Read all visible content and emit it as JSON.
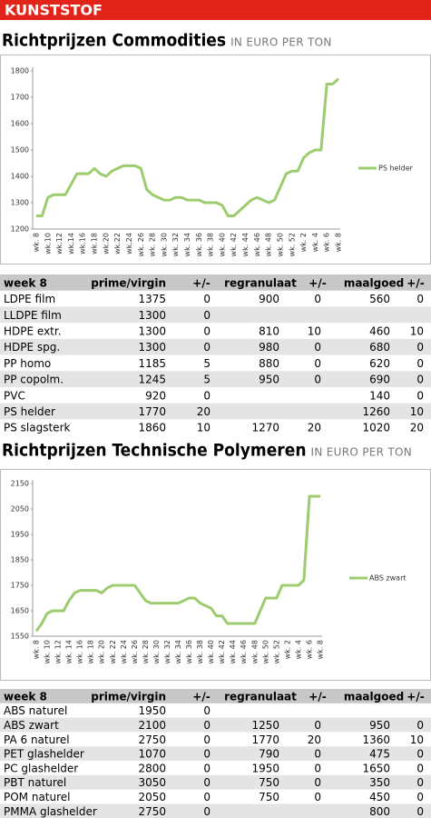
{
  "header": "KUNSTSTOF",
  "sections": [
    {
      "title": "Richtprijzen Commodities",
      "subtitle": "IN EURO PER TON",
      "table": {
        "columns": [
          "week 8",
          "prime/virgin",
          "+/-",
          "regranulaat",
          "+/-",
          "maalgoed",
          "+/-"
        ],
        "rows": [
          [
            "LDPE film",
            1375,
            0,
            900,
            0,
            560,
            0
          ],
          [
            "LLDPE film",
            1300,
            0,
            null,
            null,
            null,
            null
          ],
          [
            "HDPE extr.",
            1300,
            0,
            810,
            10,
            460,
            10
          ],
          [
            "HDPE spg.",
            1300,
            0,
            980,
            0,
            680,
            0
          ],
          [
            "PP homo",
            1185,
            5,
            880,
            0,
            620,
            0
          ],
          [
            "PP copolm.",
            1245,
            5,
            950,
            0,
            690,
            0
          ],
          [
            "PVC",
            920,
            0,
            null,
            null,
            140,
            0
          ],
          [
            "PS helder",
            1770,
            20,
            null,
            null,
            1260,
            10
          ],
          [
            "PS slagsterk",
            1860,
            10,
            1270,
            20,
            1020,
            20
          ]
        ]
      }
    },
    {
      "title": "Richtprijzen Technische Polymeren",
      "subtitle": "IN EURO PER TON",
      "table": {
        "columns": [
          "week 8",
          "prime/virgin",
          "+/-",
          "regranulaat",
          "+/-",
          "maalgoed",
          "+/-"
        ],
        "rows": [
          [
            "ABS naturel",
            1950,
            0,
            null,
            null,
            null,
            null
          ],
          [
            "ABS zwart",
            2100,
            0,
            1250,
            0,
            950,
            0
          ],
          [
            "PA 6 naturel",
            2750,
            0,
            1770,
            20,
            1360,
            10
          ],
          [
            "PET glashelder",
            1070,
            0,
            790,
            0,
            475,
            0
          ],
          [
            "PC glashelder",
            2800,
            0,
            1950,
            0,
            1650,
            0
          ],
          [
            "PBT naturel",
            3050,
            0,
            750,
            0,
            350,
            0
          ],
          [
            "POM naturel",
            2050,
            0,
            750,
            0,
            450,
            0
          ],
          [
            "PMMA glashelder",
            2750,
            0,
            null,
            null,
            800,
            0
          ]
        ]
      }
    }
  ],
  "chart_data": [
    {
      "type": "line",
      "categories": [
        "wk. 8",
        null,
        "wk.10",
        null,
        "wk.12",
        null,
        "wk.14",
        null,
        "wk.16",
        null,
        "wk.18",
        null,
        "wk.20",
        null,
        "wk.22",
        null,
        "wk.24",
        null,
        "wk. 26",
        null,
        "wk. 28",
        null,
        "wk. 30",
        null,
        "wk. 32",
        null,
        "wk. 34",
        null,
        "wk. 36",
        null,
        "wk. 38",
        null,
        "wk. 40",
        null,
        "wk. 42",
        null,
        "wk. 44",
        null,
        "wk. 46",
        null,
        "wk. 48",
        null,
        "wk. 50",
        null,
        "wk. 52",
        null,
        "wk. 2",
        null,
        "wk. 4",
        null,
        "wk. 6",
        null,
        "wk. 8"
      ],
      "series": [
        {
          "name": "PS helder",
          "color": "#9ccc6e",
          "values": [
            1250,
            1250,
            1320,
            1330,
            1330,
            1330,
            1370,
            1410,
            1410,
            1410,
            1430,
            1410,
            1400,
            1420,
            1430,
            1440,
            1440,
            1440,
            1430,
            1350,
            1330,
            1320,
            1310,
            1310,
            1320,
            1320,
            1310,
            1310,
            1310,
            1300,
            1300,
            1300,
            1290,
            1250,
            1250,
            1270,
            1290,
            1310,
            1320,
            1310,
            1300,
            1310,
            1360,
            1410,
            1420,
            1420,
            1470,
            1490,
            1500,
            1500,
            1750,
            1750,
            1770
          ]
        }
      ],
      "ylim": [
        1200,
        1800
      ],
      "yticks": [
        1200,
        1300,
        1400,
        1500,
        1600,
        1700,
        1800
      ],
      "grid": false,
      "legend": "right"
    },
    {
      "type": "line",
      "categories": [
        "wk. 8",
        null,
        "wk. 10",
        null,
        "wk. 12",
        null,
        "wk. 14",
        null,
        "wk. 16",
        null,
        "wk. 18",
        null,
        "wk. 20",
        null,
        "wk. 22",
        null,
        "wk. 24",
        null,
        "wk. 26",
        null,
        "wk. 28",
        null,
        "wk. 30",
        null,
        "wk. 32",
        null,
        "wk. 34",
        null,
        "wk. 36",
        null,
        "wk. 38",
        null,
        "wk. 40",
        null,
        "wk. 42",
        null,
        "wk. 44",
        null,
        "wk. 46",
        null,
        "wk. 48",
        null,
        "wk. 50",
        null,
        "wk. 52",
        null,
        "wk. 2",
        null,
        "wk. 4",
        null,
        "wk. 6",
        null,
        "wk. 8"
      ],
      "series": [
        {
          "name": "ABS zwart",
          "color": "#9ccc6e",
          "values": [
            1570,
            1600,
            1640,
            1650,
            1650,
            1650,
            1690,
            1720,
            1730,
            1730,
            1730,
            1730,
            1720,
            1740,
            1750,
            1750,
            1750,
            1750,
            1750,
            1720,
            1690,
            1680,
            1680,
            1680,
            1680,
            1680,
            1680,
            1690,
            1700,
            1700,
            1680,
            1670,
            1660,
            1630,
            1630,
            1600,
            1600,
            1600,
            1600,
            1600,
            1600,
            1650,
            1700,
            1700,
            1700,
            1750,
            1750,
            1750,
            1750,
            1770,
            2100,
            2100,
            2100
          ]
        }
      ],
      "ylim": [
        1550,
        2150
      ],
      "yticks": [
        1550,
        1650,
        1750,
        1850,
        1950,
        2050,
        2150
      ],
      "grid": false,
      "legend": "right"
    }
  ]
}
